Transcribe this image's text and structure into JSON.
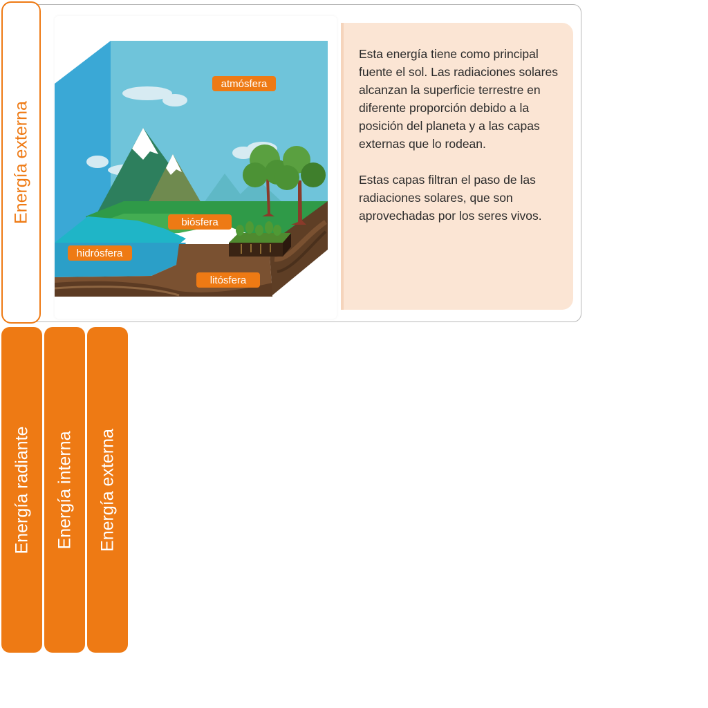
{
  "active_tab": {
    "label": "Energía externa"
  },
  "diagram": {
    "labels": {
      "atmosphere": "atmósfera",
      "biosphere": "biósfera",
      "hydrosphere": "hidrósfera",
      "lithosphere": "litósfera"
    }
  },
  "content": {
    "paragraphs": [
      "Esta energía tiene como principal fuente el sol. Las radiaciones solares alcanzan la superficie terrestre en diferente proporción debido a la posición del planeta y a las capas externas que lo rodean.",
      "Estas capas filtran el paso de las radiaciones solares, que son aprovechadas por los seres vivos."
    ]
  },
  "tabs": [
    {
      "label": "Energía radiante"
    },
    {
      "label": "Energía interna"
    },
    {
      "label": "Energía externa"
    }
  ],
  "colors": {
    "accent": "#ee7a14",
    "text_card_bg": "#fbe5d4",
    "sky": "#6cc3d9",
    "water": "#33a5c6",
    "grass": "#2e9a47",
    "soil": "#7a5131"
  }
}
